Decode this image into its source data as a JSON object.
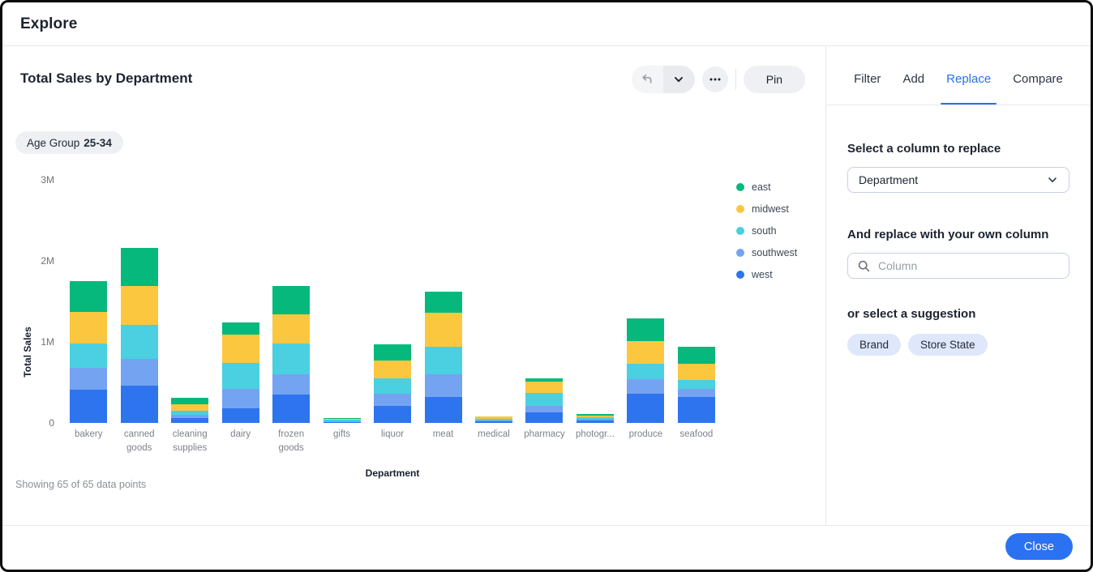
{
  "window": {
    "title": "Explore"
  },
  "viz": {
    "title": "Total Sales by Department",
    "filter_chip": {
      "label": "Age Group",
      "value": "25-34"
    },
    "status": "Showing 65 of 65 data points"
  },
  "toolbar": {
    "undo_icon": "undo-arrow",
    "expand_icon": "chevron-down",
    "more_icon": "ellipsis",
    "pin_label": "Pin"
  },
  "panel": {
    "tabs": [
      {
        "label": "Filter",
        "active": false
      },
      {
        "label": "Add",
        "active": false
      },
      {
        "label": "Replace",
        "active": true
      },
      {
        "label": "Compare",
        "active": false
      }
    ],
    "replace": {
      "select_heading": "Select a column to replace",
      "select_value": "Department",
      "replace_heading": "And replace with your own column",
      "search_placeholder": "Column",
      "suggestion_heading": "or select a suggestion",
      "suggestions": [
        "Brand",
        "Store State"
      ]
    }
  },
  "footer": {
    "close_label": "Close"
  },
  "chart_data": {
    "type": "bar",
    "stacked": true,
    "title": "Total Sales by Department",
    "xlabel": "Department",
    "ylabel": "Total Sales",
    "unit": "millions",
    "ylim_m": [
      0,
      3
    ],
    "yticks": [
      {
        "label": "0",
        "value": 0
      },
      {
        "label": "1M",
        "value": 1
      },
      {
        "label": "2M",
        "value": 2
      },
      {
        "label": "3M",
        "value": 3
      }
    ],
    "grid": false,
    "legend_position": "right",
    "legend_order": [
      "east",
      "midwest",
      "south",
      "southwest",
      "west"
    ],
    "categories": [
      "bakery",
      "canned goods",
      "cleaning supplies",
      "dairy",
      "frozen goods",
      "gifts",
      "liquor",
      "meat",
      "medical",
      "pharmacy",
      "photogr...",
      "produce",
      "seafood"
    ],
    "series": [
      {
        "name": "west",
        "color": "#2e74ee",
        "values": [
          0.41,
          0.46,
          0.06,
          0.18,
          0.35,
          0.015,
          0.21,
          0.32,
          0.02,
          0.13,
          0.03,
          0.36,
          0.32
        ]
      },
      {
        "name": "southwest",
        "color": "#74a3f1",
        "values": [
          0.27,
          0.33,
          0.04,
          0.24,
          0.25,
          0.01,
          0.15,
          0.28,
          0.012,
          0.08,
          0.02,
          0.18,
          0.1
        ]
      },
      {
        "name": "south",
        "color": "#4ad0e0",
        "values": [
          0.3,
          0.42,
          0.05,
          0.32,
          0.38,
          0.012,
          0.19,
          0.34,
          0.015,
          0.16,
          0.02,
          0.19,
          0.11
        ]
      },
      {
        "name": "midwest",
        "color": "#fbc73e",
        "values": [
          0.39,
          0.48,
          0.08,
          0.35,
          0.36,
          0.012,
          0.22,
          0.42,
          0.03,
          0.14,
          0.02,
          0.28,
          0.2
        ]
      },
      {
        "name": "east",
        "color": "#06b87c",
        "values": [
          0.38,
          0.47,
          0.08,
          0.15,
          0.35,
          0.012,
          0.2,
          0.26,
          0.006,
          0.04,
          0.02,
          0.28,
          0.21
        ]
      }
    ]
  }
}
